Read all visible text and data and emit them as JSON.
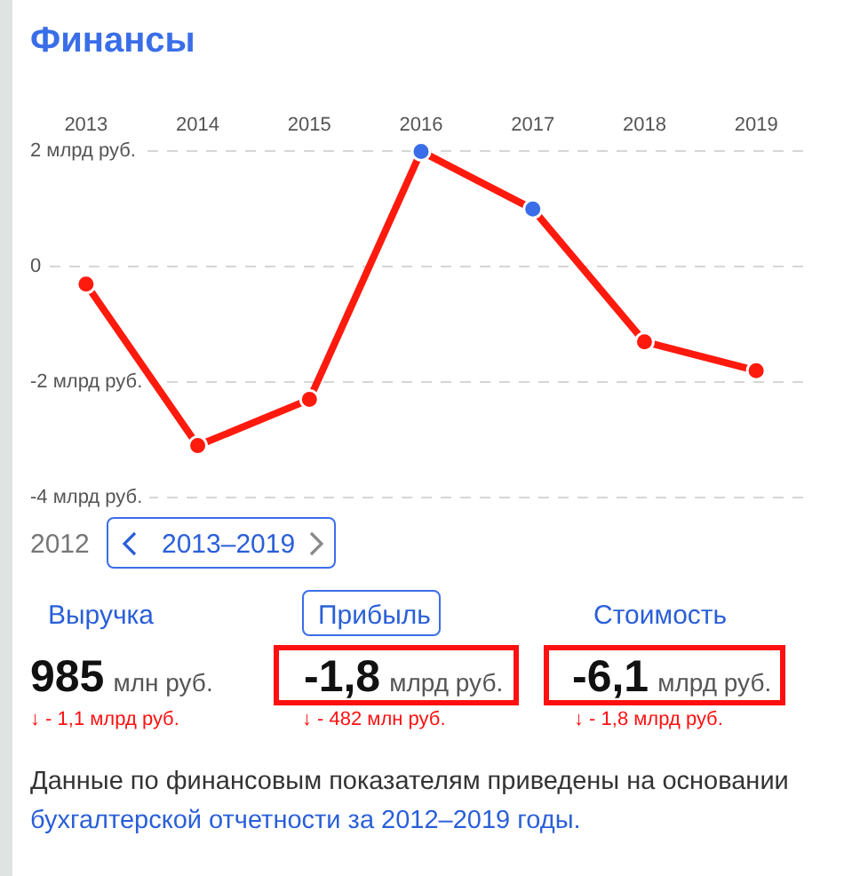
{
  "chart_data": {
    "type": "line",
    "title": "Финансы",
    "categories": [
      "2013",
      "2014",
      "2015",
      "2016",
      "2017",
      "2018",
      "2019"
    ],
    "values": [
      -0.3,
      -3.1,
      -2.3,
      2.0,
      1.0,
      -1.3,
      -1.8
    ],
    "color": "#ff1a0e",
    "colors": [
      "#ff1a0e",
      "#ff1a0e",
      "#ff1a0e",
      "#3a6ee8",
      "#3a6ee8",
      "#ff1a0e",
      "#ff1a0e"
    ],
    "ylim": [
      -4,
      2
    ],
    "yticks": [
      {
        "value": -4,
        "label": "-4 млрд руб."
      },
      {
        "value": -2,
        "label": "-2 млрд руб."
      },
      0,
      {
        "value": 2,
        "label": "2 млрд руб."
      }
    ],
    "grid": "y",
    "marker": "circle",
    "line_style": "solid",
    "annotations": [
      "2012",
      "2013–2019",
      "Выручка",
      "Прибыль",
      "Стоимость",
      "985 млн руб.",
      "-1,8 млрд руб.",
      "-6,1 млрд руб.",
      "↓ - 1,1 млрд руб.",
      "↓ - 482 млн руб.",
      "↓ - 1,8 млрд руб.",
      "Данные по финансовым показателям приведены на основании",
      "бухгалтерской отчетности за 2012–2019 годы."
    ]
  }
}
